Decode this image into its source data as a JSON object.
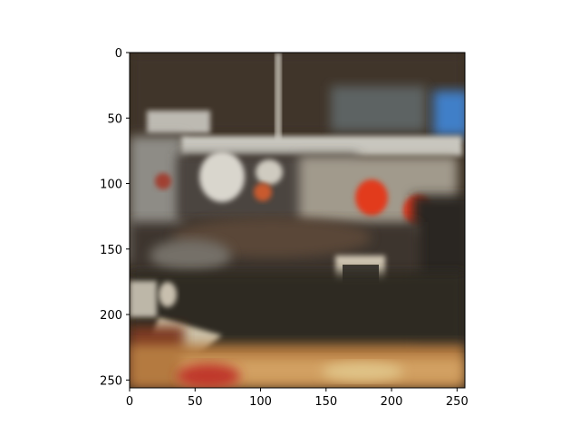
{
  "chart_data": {
    "type": "image",
    "title": "",
    "xlabel": "",
    "ylabel": "",
    "xlim": [
      0,
      256
    ],
    "ylim": [
      256,
      0
    ],
    "x_ticks": [
      0,
      50,
      100,
      150,
      200,
      250
    ],
    "y_ticks": [
      0,
      50,
      100,
      150,
      200,
      250
    ],
    "image": {
      "width": 256,
      "height": 256,
      "description_regions": [
        {
          "label": "ceiling",
          "color": "#4a3d2e"
        },
        {
          "label": "counter",
          "color": "#5a4330"
        },
        {
          "label": "wall-light",
          "color": "#b8b4a9"
        },
        {
          "label": "sky-blue",
          "color": "#3f7fc8"
        },
        {
          "label": "red-object",
          "color": "#e03a1f"
        },
        {
          "label": "floor-gold",
          "color": "#c98f4e"
        }
      ]
    }
  }
}
